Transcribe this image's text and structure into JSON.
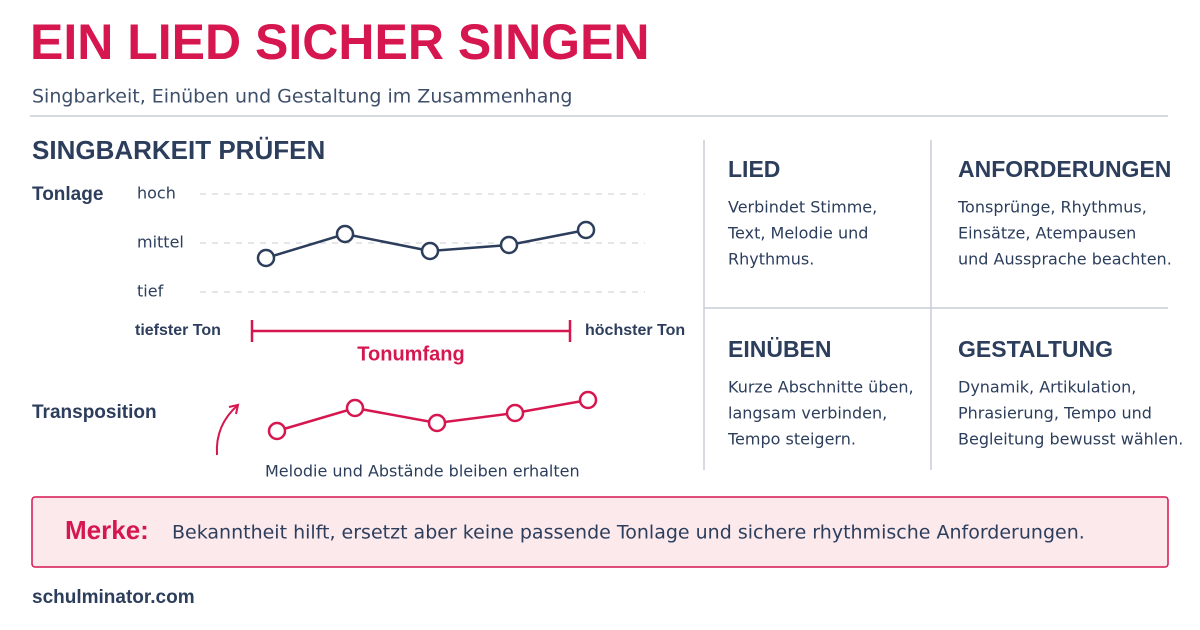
{
  "header": {
    "title": "EIN LIED SICHER SINGEN",
    "subtitle": "Singbarkeit, Einüben und Gestaltung im Zusammenhang"
  },
  "singbarkeit": {
    "title": "SINGBARKEIT PRÜFEN",
    "tonlage": {
      "label": "Tonlage",
      "levels": [
        "hoch",
        "mittel",
        "tief"
      ]
    },
    "range": {
      "low": "tiefster Ton",
      "high": "höchster Ton",
      "label": "Tonumfang"
    },
    "transposition": {
      "label": "Transposition",
      "caption": "Melodie und Abstände bleiben erhalten"
    }
  },
  "cards": [
    {
      "title": "LIED",
      "lines": [
        "Verbindet Stimme,",
        "Text, Melodie und",
        "Rhythmus."
      ]
    },
    {
      "title": "ANFORDERUNGEN",
      "lines": [
        "Tonsprünge, Rhythmus,",
        "Einsätze, Atempausen",
        "und Aussprache beachten."
      ]
    },
    {
      "title": "EINÜBEN",
      "lines": [
        "Kurze Abschnitte üben,",
        "langsam verbinden,",
        "Tempo steigern."
      ]
    },
    {
      "title": "GESTALTUNG",
      "lines": [
        "Dynamik, Artikulation,",
        "Phrasierung, Tempo und",
        "Begleitung bewusst wählen."
      ]
    }
  ],
  "note": {
    "label": "Merke:",
    "text": "Bekanntheit hilft, ersetzt aber keine passende Tonlage und sichere rhythmische Anforderungen."
  },
  "footer": {
    "source": "schulminator.com"
  }
}
